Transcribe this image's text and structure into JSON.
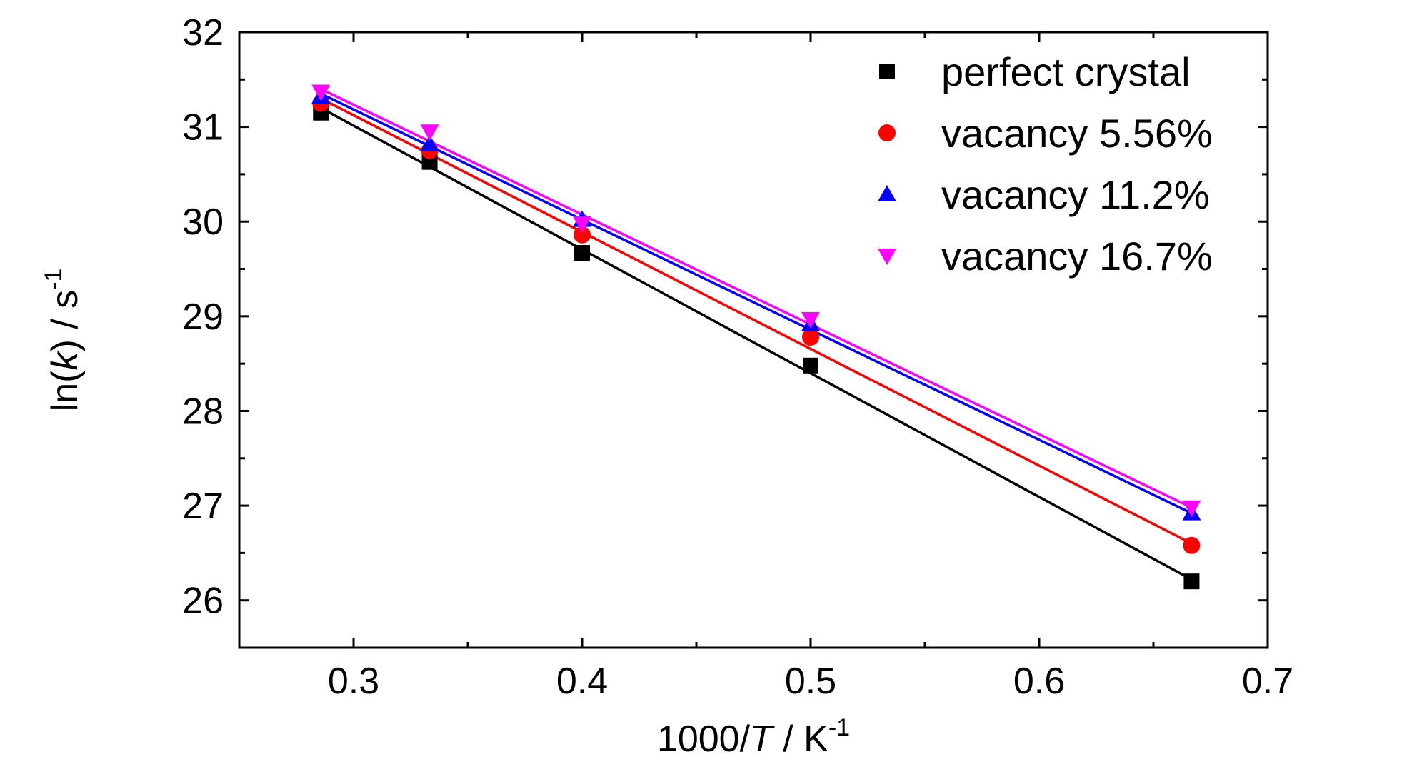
{
  "chart_data": {
    "type": "scatter",
    "xlabel": {
      "prefix": "1000/",
      "italic": "T",
      "unit": " / K",
      "sup": "-1"
    },
    "ylabel": {
      "prefix": "ln(",
      "italic": "k",
      "suffix": ") / s",
      "sup": "-1"
    },
    "xlim": [
      0.25,
      0.7
    ],
    "ylim": [
      25.5,
      32
    ],
    "x_ticks": [
      "0.3",
      "0.4",
      "0.5",
      "0.6",
      "0.7"
    ],
    "y_ticks": [
      "26",
      "27",
      "28",
      "29",
      "30",
      "31",
      "32"
    ],
    "grid": false,
    "legend_position": "top-right",
    "series": [
      {
        "name": "perfect crystal",
        "color": "#000000",
        "marker": "square",
        "x": [
          0.2857,
          0.3333,
          0.4,
          0.5,
          0.6667
        ],
        "y": [
          31.15,
          30.63,
          29.67,
          28.48,
          26.2
        ],
        "fit": [
          [
            0.2857,
            31.2
          ],
          [
            0.6667,
            26.22
          ]
        ]
      },
      {
        "name": "vacancy 5.56%",
        "color": "#ff0000",
        "marker": "circle",
        "x": [
          0.2857,
          0.3333,
          0.4,
          0.5,
          0.6667
        ],
        "y": [
          31.25,
          30.75,
          29.86,
          28.78,
          26.58
        ],
        "fit": [
          [
            0.2857,
            31.3
          ],
          [
            0.6667,
            26.6
          ]
        ]
      },
      {
        "name": "vacancy 11.2%",
        "color": "#0000ff",
        "marker": "triangle-up",
        "x": [
          0.2857,
          0.3333,
          0.4,
          0.5,
          0.6667
        ],
        "y": [
          31.32,
          30.82,
          30.02,
          28.92,
          26.92
        ],
        "fit": [
          [
            0.2857,
            31.35
          ],
          [
            0.6667,
            26.92
          ]
        ]
      },
      {
        "name": "vacancy 16.7%",
        "color": "#ff00ff",
        "marker": "triangle-down",
        "x": [
          0.2857,
          0.3333,
          0.4,
          0.5,
          0.6667
        ],
        "y": [
          31.37,
          30.95,
          29.98,
          28.97,
          26.98
        ],
        "fit": [
          [
            0.2857,
            31.4
          ],
          [
            0.6667,
            26.98
          ]
        ]
      }
    ]
  }
}
